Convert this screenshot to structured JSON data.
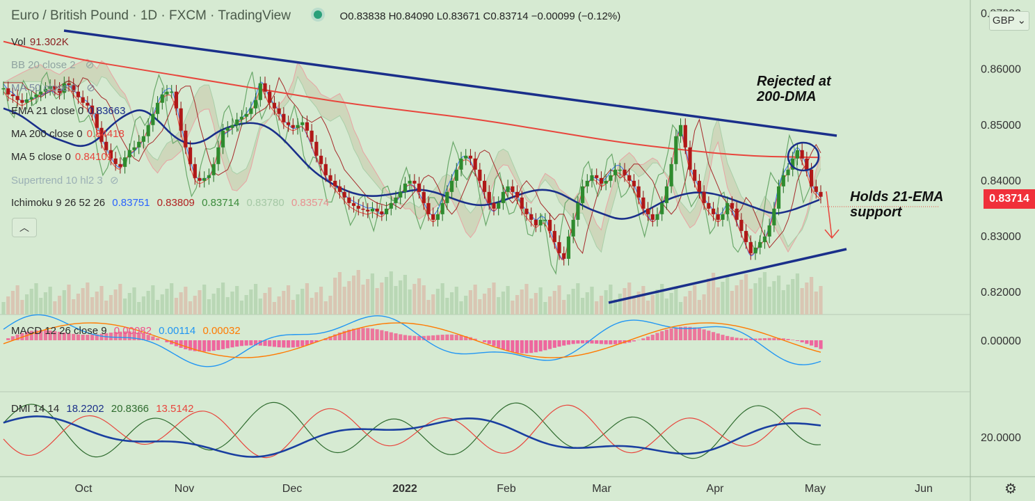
{
  "header": {
    "title": "Euro / British Pound · 1D · FXCM · TradingView",
    "ohlc": "O0.83838 H0.84090 L0.83671 C0.83714 −0.00099 (−0.12%)"
  },
  "indicators": {
    "vol": {
      "name": "Vol",
      "value": "91.302K",
      "color": "#8b2323"
    },
    "bb": {
      "name": "BB 20 close 2"
    },
    "ma50": {
      "name": "MA 50 close 0"
    },
    "ema21": {
      "name": "EMA 21 close 0",
      "value": "0.83663",
      "color": "#1a2f8a"
    },
    "ma200": {
      "name": "MA 200 close 0",
      "value": "0.84418",
      "color": "#e8453c"
    },
    "ma5": {
      "name": "MA 5 close 0",
      "value": "0.84101",
      "color": "#e8453c"
    },
    "supertrend": {
      "name": "Supertrend 10 hl2 3"
    },
    "ichimoku": {
      "name": "Ichimoku 9 26 52 26",
      "v1": "0.83751",
      "v2": "0.83809",
      "v3": "0.83714",
      "v4": "0.83780",
      "v5": "0.83574"
    },
    "macd": {
      "name": "MACD 12 26 close 9",
      "v1": "0.00082",
      "v2": "0.00114",
      "v3": "0.00032"
    },
    "dmi": {
      "name": "DMI 14 14",
      "v1": "18.2202",
      "v2": "20.8366",
      "v3": "13.5142"
    }
  },
  "annotations": {
    "rejected": "Rejected at\n200-DMA",
    "holds": "Holds 21-EMA\nsupport"
  },
  "current_price": "0.83714",
  "currency": "GBP",
  "chart_data": {
    "type": "line",
    "title": "Euro / British Pound",
    "price_axis": {
      "ticks": [
        "0.82000",
        "0.83000",
        "0.84000",
        "0.85000",
        "0.86000",
        "0.87000"
      ],
      "values": [
        0.82,
        0.83,
        0.84,
        0.85,
        0.86,
        0.87
      ],
      "ylim": [
        0.8165,
        0.8712
      ]
    },
    "time_axis": [
      "Oct",
      "Nov",
      "Dec",
      "2022",
      "Feb",
      "Mar",
      "Apr",
      "May",
      "Jun"
    ],
    "series": [
      {
        "name": "Close",
        "values": [
          0.8566,
          0.8555,
          0.8552,
          0.8545,
          0.854,
          0.8546,
          0.855,
          0.8555,
          0.856,
          0.8565,
          0.857,
          0.8565,
          0.8558,
          0.8575,
          0.8572,
          0.856,
          0.855,
          0.854,
          0.8535,
          0.852,
          0.8495,
          0.847,
          0.8455,
          0.844,
          0.843,
          0.8425,
          0.8442,
          0.8455,
          0.846,
          0.847,
          0.848,
          0.85,
          0.852,
          0.854,
          0.8555,
          0.856,
          0.856,
          0.853,
          0.849,
          0.846,
          0.843,
          0.8405,
          0.84,
          0.8405,
          0.841,
          0.843,
          0.846,
          0.849,
          0.8495,
          0.85,
          0.851,
          0.8515,
          0.852,
          0.853,
          0.8545,
          0.8575,
          0.856,
          0.854,
          0.853,
          0.852,
          0.8505,
          0.85,
          0.8495,
          0.85,
          0.8505,
          0.849,
          0.847,
          0.8445,
          0.843,
          0.841,
          0.84,
          0.839,
          0.838,
          0.837,
          0.836,
          0.8355,
          0.835,
          0.8348,
          0.8345,
          0.835,
          0.8345,
          0.834,
          0.835,
          0.836,
          0.837,
          0.838,
          0.8395,
          0.84,
          0.8395,
          0.838,
          0.836,
          0.834,
          0.833,
          0.834,
          0.836,
          0.838,
          0.84,
          0.842,
          0.844,
          0.8445,
          0.844,
          0.842,
          0.84,
          0.838,
          0.836,
          0.835,
          0.836,
          0.838,
          0.839,
          0.838,
          0.837,
          0.835,
          0.834,
          0.833,
          0.832,
          0.833,
          0.833,
          0.831,
          0.829,
          0.827,
          0.826,
          0.83,
          0.833,
          0.836,
          0.839,
          0.84,
          0.841,
          0.8405,
          0.8395,
          0.84,
          0.841,
          0.842,
          0.842,
          0.841,
          0.84,
          0.839,
          0.837,
          0.835,
          0.834,
          0.833,
          0.834,
          0.836,
          0.839,
          0.843,
          0.848,
          0.85,
          0.846,
          0.842,
          0.84,
          0.838,
          0.836,
          0.835,
          0.834,
          0.833,
          0.834,
          0.836,
          0.835,
          0.833,
          0.831,
          0.829,
          0.827,
          0.828,
          0.829,
          0.83,
          0.832,
          0.835,
          0.839,
          0.841,
          0.842,
          0.844,
          0.8455,
          0.844,
          0.842,
          0.839,
          0.838,
          0.83714
        ]
      },
      {
        "name": "MA 200",
        "values": [
          0.865,
          0.862,
          0.86,
          0.858,
          0.856,
          0.854,
          0.8525,
          0.851,
          0.849,
          0.847,
          0.8455,
          0.8444,
          0.8442
        ]
      },
      {
        "name": "EMA 21",
        "values": [
          0.853,
          0.852,
          0.85,
          0.848,
          0.847,
          0.846,
          0.847,
          0.85,
          0.852,
          0.853,
          0.851,
          0.848,
          0.8465,
          0.847,
          0.849,
          0.85,
          0.8505,
          0.85,
          0.848,
          0.845,
          0.842,
          0.84,
          0.8385,
          0.8375,
          0.8372,
          0.8375,
          0.838,
          0.8385,
          0.838,
          0.837,
          0.836,
          0.8355,
          0.836,
          0.837,
          0.838,
          0.8385,
          0.838,
          0.8365,
          0.835,
          0.834,
          0.833,
          0.8335,
          0.835,
          0.8365,
          0.8375,
          0.838,
          0.8378,
          0.837,
          0.836,
          0.835,
          0.834,
          0.8345,
          0.8355,
          0.8366
        ]
      }
    ],
    "trendlines": [
      {
        "name": "upper"
      },
      {
        "name": "lower"
      }
    ]
  }
}
